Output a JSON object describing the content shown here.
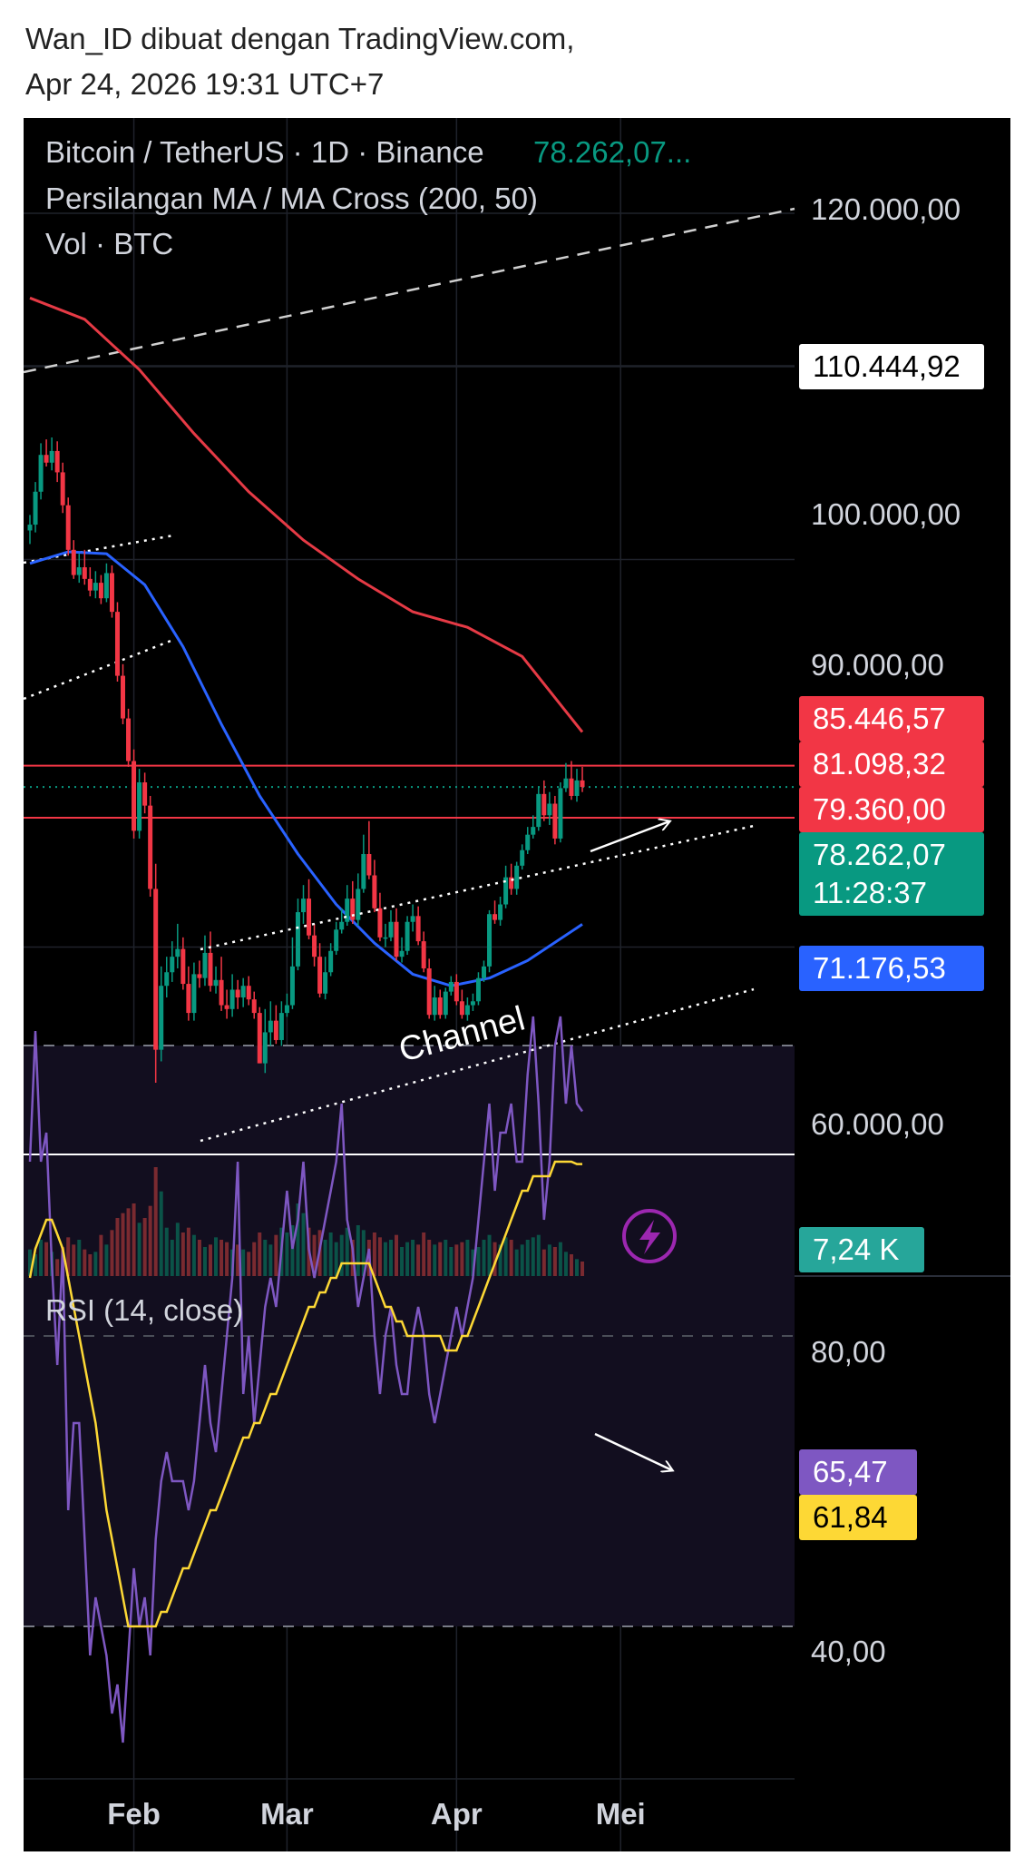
{
  "header": {
    "line1": "Wan_ID dibuat dengan TradingView.com,",
    "line2": "Apr 24, 2026 19:31 UTC+7"
  },
  "legend": {
    "symbol": "Bitcoin / TetherUS · 1D · Binance",
    "last_price": "78.262,07...",
    "indicator": "Persilangan MA / MA Cross (200, 50)",
    "volume": "Vol · BTC",
    "rsi": "RSI (14, close)"
  },
  "price_axis": {
    "ticks": [
      "120.000,00",
      "100.000,00",
      "90.000,00",
      "60.000,00"
    ],
    "labels": [
      {
        "text": "110.444,92",
        "color": "#ffffff",
        "text_color": "#000000"
      },
      {
        "text": "85.446,57",
        "color": "#f23645",
        "text_color": "#ffffff"
      },
      {
        "text": "81.098,32",
        "color": "#f23645",
        "text_color": "#ffffff"
      },
      {
        "text": "79.360,00",
        "color": "#f23645",
        "text_color": "#ffffff"
      },
      {
        "text": "78.262,07",
        "color": "#089981",
        "text_color": "#ffffff"
      },
      {
        "text": "11:28:37",
        "color": "#089981",
        "text_color": "#ffffff"
      },
      {
        "text": "71.176,53",
        "color": "#2962ff",
        "text_color": "#ffffff"
      },
      {
        "text": "7,24 K",
        "color": "#26a69a",
        "text_color": "#ffffff"
      }
    ]
  },
  "rsi_axis": {
    "ticks": [
      "80,00",
      "40,00"
    ],
    "labels": [
      {
        "text": "65,47",
        "color": "#7e57c2",
        "text_color": "#ffffff"
      },
      {
        "text": "61,84",
        "color": "#fdd835",
        "text_color": "#000000"
      }
    ]
  },
  "time_axis": [
    "Feb",
    "Mar",
    "Apr",
    "Mei"
  ],
  "annotation": "Channel",
  "colors": {
    "up": "#089981",
    "down": "#f23645",
    "ma200": "#e53a45",
    "ma50": "#2962ff",
    "rsi": "#7e57c2",
    "rsi_ma": "#fdd835",
    "background": "#000000"
  },
  "chart_data": {
    "type": "candlestick",
    "symbol": "BTC/USDT",
    "x": [
      "2026-01-13",
      "2026-01-14",
      "2026-01-15",
      "2026-01-16",
      "2026-01-17",
      "2026-01-18",
      "2026-01-19",
      "2026-01-20",
      "2026-01-21",
      "2026-01-22",
      "2026-01-23",
      "2026-01-24",
      "2026-01-25",
      "2026-01-26",
      "2026-01-27",
      "2026-01-28",
      "2026-01-29",
      "2026-01-30",
      "2026-01-31",
      "2026-02-01",
      "2026-02-02",
      "2026-02-03",
      "2026-02-04",
      "2026-02-05",
      "2026-02-06",
      "2026-02-07",
      "2026-02-08",
      "2026-02-09",
      "2026-02-10",
      "2026-02-11",
      "2026-02-12",
      "2026-02-13",
      "2026-02-14",
      "2026-02-15",
      "2026-02-16",
      "2026-02-17",
      "2026-02-18",
      "2026-02-19",
      "2026-02-20",
      "2026-02-21",
      "2026-02-22",
      "2026-02-23",
      "2026-02-24",
      "2026-02-25",
      "2026-02-26",
      "2026-02-27",
      "2026-02-28",
      "2026-03-01",
      "2026-03-02",
      "2026-03-03",
      "2026-03-04",
      "2026-03-05",
      "2026-03-06",
      "2026-03-07",
      "2026-03-08",
      "2026-03-09",
      "2026-03-10",
      "2026-03-11",
      "2026-03-12",
      "2026-03-13",
      "2026-03-14",
      "2026-03-15",
      "2026-03-16",
      "2026-03-17",
      "2026-03-18",
      "2026-03-19",
      "2026-03-20",
      "2026-03-21",
      "2026-03-22",
      "2026-03-23",
      "2026-03-24",
      "2026-03-25",
      "2026-03-26",
      "2026-03-27",
      "2026-03-28",
      "2026-03-29",
      "2026-03-30",
      "2026-03-31",
      "2026-04-01",
      "2026-04-02",
      "2026-04-03",
      "2026-04-04",
      "2026-04-05",
      "2026-04-06",
      "2026-04-07",
      "2026-04-08",
      "2026-04-09",
      "2026-04-10",
      "2026-04-11",
      "2026-04-12",
      "2026-04-13",
      "2026-04-14",
      "2026-04-15",
      "2026-04-16",
      "2026-04-17",
      "2026-04-18",
      "2026-04-19",
      "2026-04-20",
      "2026-04-21",
      "2026-04-22",
      "2026-04-23",
      "2026-04-24"
    ],
    "open": [
      91500,
      91800,
      93500,
      95400,
      95000,
      95600,
      94500,
      92800,
      90500,
      89200,
      89600,
      89000,
      88400,
      88800,
      88000,
      89300,
      87300,
      84000,
      81800,
      79600,
      76000,
      78500,
      77300,
      73000,
      64700,
      68000,
      68700,
      69500,
      69900,
      68100,
      66600,
      68600,
      68400,
      69700,
      68000,
      68300,
      67000,
      66800,
      67800,
      67400,
      68000,
      67300,
      66600,
      64000,
      65600,
      66200,
      65200,
      66600,
      67000,
      69000,
      71800,
      72500,
      70600,
      69500,
      67600,
      68700,
      69800,
      70900,
      71300,
      72500,
      71400,
      73000,
      74800,
      73700,
      72000,
      70500,
      70500,
      71300,
      69500,
      69800,
      71300,
      71600,
      70300,
      68900,
      66500,
      67400,
      66500,
      67700,
      68200,
      67200,
      66500,
      67000,
      67200,
      68400,
      69000,
      71700,
      71400,
      72200,
      73600,
      73000,
      74200,
      75000,
      75800,
      76200,
      77900,
      76800,
      77400,
      75600,
      78200,
      78700,
      77800,
      78600
    ],
    "high": [
      92300,
      94000,
      96000,
      96200,
      96300,
      96100,
      95000,
      93200,
      91000,
      90300,
      90500,
      89600,
      89400,
      89200,
      89800,
      89700,
      87800,
      84600,
      82300,
      80200,
      79200,
      79000,
      77800,
      74300,
      69000,
      69500,
      70300,
      71200,
      70500,
      69000,
      69200,
      69300,
      70600,
      70800,
      69000,
      69500,
      67800,
      68600,
      68300,
      68400,
      68500,
      67700,
      66900,
      66800,
      67200,
      67000,
      67200,
      67600,
      70500,
      72500,
      73200,
      73500,
      71200,
      70200,
      69500,
      70200,
      71300,
      72000,
      73200,
      73400,
      73800,
      75800,
      76500,
      74500,
      72800,
      71200,
      71900,
      72000,
      70500,
      71600,
      72200,
      72100,
      70800,
      69400,
      68000,
      67800,
      67900,
      68500,
      68600,
      67800,
      67400,
      67600,
      68700,
      69300,
      71900,
      72400,
      72600,
      74200,
      74300,
      74400,
      75300,
      76200,
      76800,
      78300,
      78600,
      78000,
      77800,
      78500,
      79500,
      79600,
      79200,
      79300
    ],
    "high_note": "data units, USDT",
    "low": [
      90800,
      91400,
      93100,
      94800,
      94600,
      94000,
      92400,
      90200,
      89000,
      88800,
      88700,
      88100,
      88000,
      87700,
      87800,
      87000,
      83700,
      81500,
      79300,
      75600,
      75600,
      76900,
      72600,
      63000,
      64100,
      67400,
      68200,
      68900,
      67800,
      66200,
      66200,
      67900,
      68000,
      67700,
      67600,
      66700,
      66300,
      66400,
      66800,
      66900,
      67000,
      66300,
      64000,
      63500,
      64900,
      65000,
      64900,
      66400,
      66800,
      68800,
      71200,
      70400,
      69000,
      67400,
      67300,
      68500,
      69600,
      70700,
      71100,
      71200,
      71100,
      72800,
      73500,
      71800,
      70300,
      70000,
      70300,
      69300,
      69200,
      69600,
      70800,
      70100,
      68700,
      66300,
      66200,
      66300,
      66300,
      67500,
      67000,
      66300,
      66200,
      66700,
      67000,
      68200,
      68700,
      71200,
      71100,
      72000,
      72700,
      72700,
      74000,
      74800,
      75600,
      76000,
      76500,
      76300,
      75300,
      75400,
      78000,
      77600,
      77500,
      78000
    ],
    "close": [
      91800,
      93500,
      95400,
      95000,
      95600,
      94500,
      92800,
      90500,
      89200,
      89600,
      89000,
      88400,
      88800,
      88000,
      89300,
      87300,
      84000,
      81800,
      79600,
      76000,
      78500,
      77300,
      73000,
      64700,
      68000,
      68700,
      69500,
      69900,
      68100,
      66600,
      68600,
      68400,
      69700,
      68000,
      68300,
      67000,
      66800,
      67800,
      67400,
      68000,
      67300,
      66600,
      64000,
      65600,
      66200,
      65200,
      66600,
      67000,
      69000,
      71800,
      72500,
      70600,
      69500,
      67600,
      68700,
      69800,
      70900,
      71300,
      72500,
      71400,
      73000,
      74800,
      73700,
      72000,
      70500,
      70500,
      71300,
      69500,
      69800,
      71300,
      71600,
      70300,
      68900,
      66500,
      67400,
      66500,
      67700,
      68200,
      67200,
      66500,
      67000,
      67200,
      68400,
      69000,
      71700,
      71400,
      72200,
      73600,
      73000,
      74200,
      75000,
      75800,
      76200,
      77900,
      76800,
      77400,
      75600,
      78200,
      78700,
      77800,
      78600,
      78262.07
    ],
    "volume": [
      22,
      18,
      30,
      28,
      20,
      14,
      24,
      32,
      26,
      30,
      22,
      18,
      20,
      34,
      26,
      38,
      48,
      52,
      56,
      60,
      44,
      48,
      58,
      90,
      70,
      40,
      30,
      44,
      36,
      40,
      34,
      30,
      24,
      26,
      32,
      30,
      28,
      22,
      26,
      22,
      20,
      28,
      36,
      30,
      26,
      34,
      40,
      36,
      42,
      60,
      52,
      40,
      34,
      38,
      30,
      36,
      28,
      34,
      40,
      30,
      42,
      38,
      30,
      36,
      32,
      28,
      30,
      34,
      24,
      28,
      30,
      26,
      36,
      30,
      26,
      28,
      30,
      24,
      26,
      28,
      30,
      22,
      24,
      30,
      34,
      28,
      26,
      32,
      30,
      22,
      26,
      30,
      32,
      34,
      22,
      26,
      24,
      28,
      20,
      18,
      14,
      12
    ],
    "volume_unit": "relative",
    "ma200": [
      {
        "x": "2026-01-13",
        "y": 103500
      },
      {
        "x": "2026-01-23",
        "y": 102400
      },
      {
        "x": "2026-02-02",
        "y": 99800
      },
      {
        "x": "2026-02-12",
        "y": 96500
      },
      {
        "x": "2026-02-22",
        "y": 93500
      },
      {
        "x": "2026-03-04",
        "y": 91000
      },
      {
        "x": "2026-03-14",
        "y": 89000
      },
      {
        "x": "2026-03-24",
        "y": 87300
      },
      {
        "x": "2026-04-03",
        "y": 86500
      },
      {
        "x": "2026-04-13",
        "y": 85000
      },
      {
        "x": "2026-04-24",
        "y": 81098.32
      }
    ],
    "ma50": [
      {
        "x": "2026-01-13",
        "y": 89800
      },
      {
        "x": "2026-01-20",
        "y": 90400
      },
      {
        "x": "2026-01-27",
        "y": 90300
      },
      {
        "x": "2026-02-03",
        "y": 88700
      },
      {
        "x": "2026-02-10",
        "y": 85500
      },
      {
        "x": "2026-02-17",
        "y": 81500
      },
      {
        "x": "2026-02-24",
        "y": 77800
      },
      {
        "x": "2026-03-03",
        "y": 74800
      },
      {
        "x": "2026-03-10",
        "y": 72200
      },
      {
        "x": "2026-03-17",
        "y": 70200
      },
      {
        "x": "2026-03-24",
        "y": 68600
      },
      {
        "x": "2026-03-31",
        "y": 68000
      },
      {
        "x": "2026-04-07",
        "y": 68400
      },
      {
        "x": "2026-04-14",
        "y": 69300
      },
      {
        "x": "2026-04-24",
        "y": 71176.53
      }
    ],
    "rsi": [
      62,
      71,
      62,
      64,
      55,
      48,
      56,
      38,
      44,
      44,
      36,
      28,
      32,
      30,
      28,
      24,
      26,
      22,
      28,
      34,
      30,
      32,
      28,
      36,
      40,
      42,
      40,
      40,
      40,
      38,
      40,
      44,
      48,
      44,
      42,
      46,
      50,
      54,
      62,
      46,
      50,
      44,
      48,
      52,
      54,
      52,
      56,
      60,
      56,
      58,
      62,
      56,
      54,
      56,
      58,
      60,
      62,
      66,
      58,
      56,
      52,
      54,
      56,
      50,
      46,
      50,
      52,
      48,
      46,
      46,
      50,
      52,
      50,
      46,
      44,
      46,
      48,
      50,
      52,
      50,
      52,
      54,
      58,
      62,
      66,
      60,
      64,
      64,
      66,
      62,
      62,
      68,
      72,
      66,
      58,
      62,
      70,
      72,
      66,
      70,
      66,
      65.47
    ],
    "rsi_ma": [
      54,
      56,
      57,
      58,
      58,
      57,
      56,
      54,
      52,
      50,
      48,
      46,
      44,
      41,
      38,
      36,
      34,
      32,
      30,
      30,
      30,
      30,
      30,
      30,
      31,
      31,
      32,
      33,
      34,
      34,
      35,
      36,
      37,
      38,
      38,
      39,
      40,
      41,
      42,
      43,
      43,
      44,
      44,
      45,
      46,
      46,
      47,
      48,
      49,
      50,
      51,
      52,
      52,
      53,
      53,
      54,
      54,
      55,
      55,
      55,
      55,
      55,
      55,
      54,
      53,
      52,
      52,
      51,
      51,
      50,
      50,
      50,
      50,
      50,
      50,
      50,
      49,
      49,
      49,
      50,
      50,
      51,
      52,
      53,
      54,
      55,
      56,
      57,
      58,
      59,
      60,
      60,
      61,
      61,
      61,
      61,
      62,
      62,
      62,
      62,
      61.84,
      61.84
    ],
    "price_ylim": [
      57000,
      124000
    ],
    "rsi_ylim": [
      20,
      90
    ],
    "rsi_bands": [
      30,
      50,
      70
    ],
    "lines": [
      {
        "kind": "resistance",
        "y": 79360,
        "color": "#f23645"
      },
      {
        "kind": "resistance",
        "y": 81098.32,
        "color": "#f23645"
      },
      {
        "kind": "support",
        "y": 59300,
        "color": "#ffffff"
      }
    ]
  }
}
